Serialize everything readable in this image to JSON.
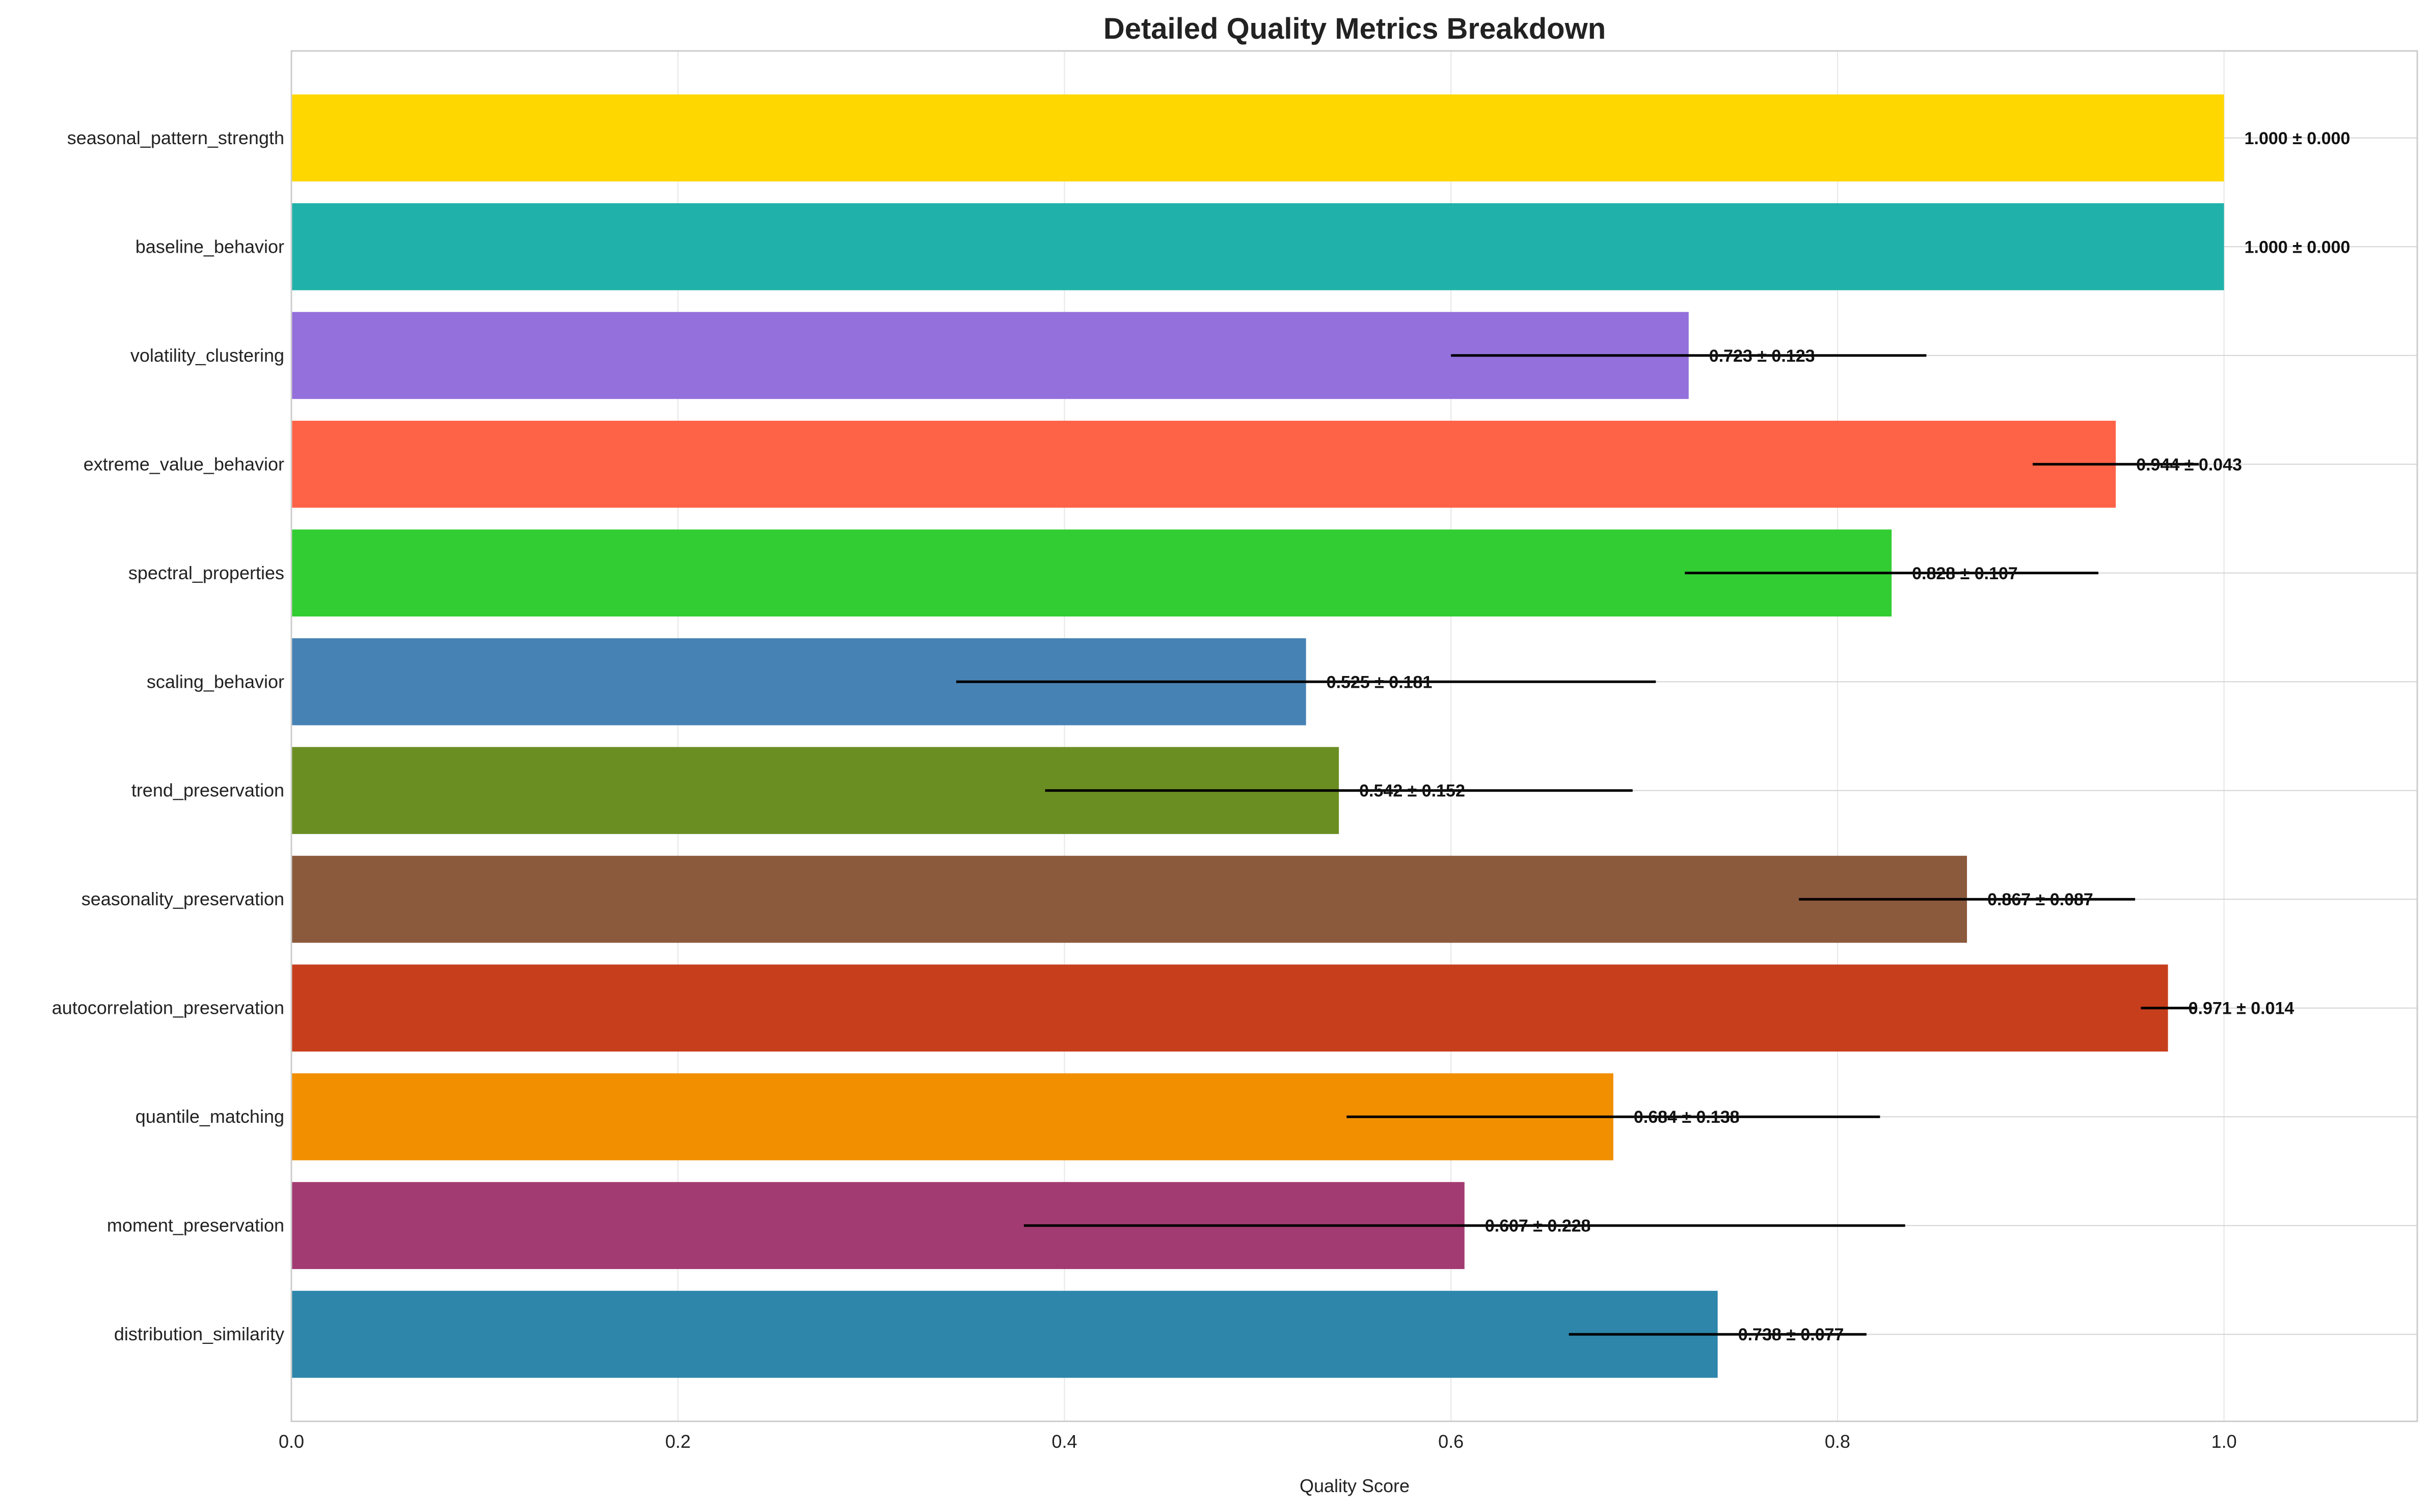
{
  "chart_data": {
    "type": "bar",
    "orientation": "horizontal",
    "title": "Detailed Quality Metrics Breakdown",
    "xlabel": "Quality Score",
    "ylabel": "",
    "xlim": [
      0,
      1.1
    ],
    "x_ticks": [
      0.0,
      0.2,
      0.4,
      0.6,
      0.8,
      1.0
    ],
    "x_tick_labels": [
      "0.0",
      "0.2",
      "0.4",
      "0.6",
      "0.8",
      "1.0"
    ],
    "grid": true,
    "categories": [
      "seasonal_pattern_strength",
      "baseline_behavior",
      "volatility_clustering",
      "extreme_value_behavior",
      "spectral_properties",
      "scaling_behavior",
      "trend_preservation",
      "seasonality_preservation",
      "autocorrelation_preservation",
      "quantile_matching",
      "moment_preservation",
      "distribution_similarity"
    ],
    "values": [
      1.0,
      1.0,
      0.723,
      0.944,
      0.828,
      0.525,
      0.542,
      0.867,
      0.971,
      0.684,
      0.607,
      0.738
    ],
    "errors": [
      0.0,
      0.0,
      0.123,
      0.043,
      0.107,
      0.181,
      0.152,
      0.087,
      0.014,
      0.138,
      0.228,
      0.077
    ],
    "value_labels": [
      "1.000 ± 0.000",
      "1.000 ± 0.000",
      "0.723 ± 0.123",
      "0.944 ± 0.043",
      "0.828 ± 0.107",
      "0.525 ± 0.181",
      "0.542 ± 0.152",
      "0.867 ± 0.087",
      "0.971 ± 0.014",
      "0.684 ± 0.138",
      "0.607 ± 0.228",
      "0.738 ± 0.077"
    ],
    "colors": [
      "#FFD700",
      "#20B2AA",
      "#9370DB",
      "#FF6347",
      "#32CD32",
      "#4682B4",
      "#6B8E23",
      "#8B5A3C",
      "#C73E1D",
      "#F18F01",
      "#A23B72",
      "#2E86AB"
    ]
  }
}
